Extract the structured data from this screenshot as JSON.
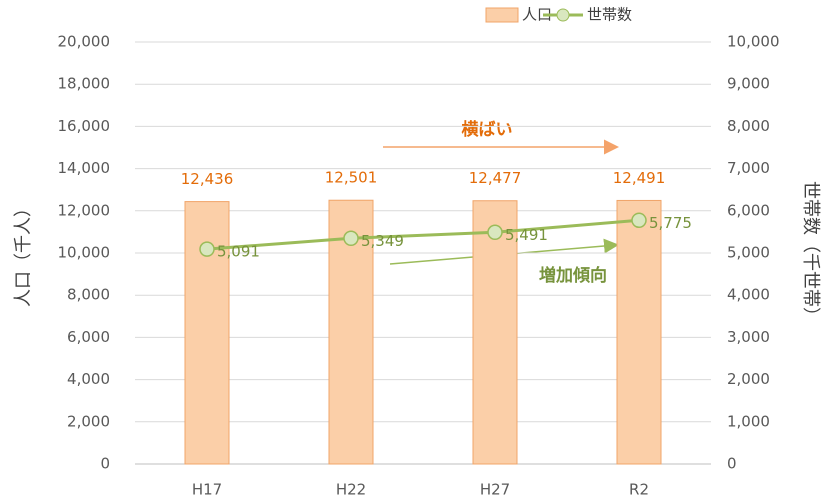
{
  "chart_data": {
    "type": "bar",
    "categories": [
      "H17",
      "H22",
      "H27",
      "R2"
    ],
    "series": [
      {
        "name": "人口",
        "type": "bar",
        "color": "#fbcfa8",
        "edge": "#f0a468",
        "label_color": "#e36c09",
        "values": [
          12436,
          12501,
          12477,
          12491
        ],
        "value_labels": [
          "12,436",
          "12,501",
          "12,477",
          "12,491"
        ]
      },
      {
        "name": "世帯数",
        "type": "line",
        "axis": "y2",
        "color": "#9bbb59",
        "marker_fill": "#d9e7bf",
        "label_color": "#77933c",
        "values": [
          5091,
          5349,
          5491,
          5775
        ],
        "value_labels": [
          "5,091",
          "5,349",
          "5,491",
          "5,775"
        ]
      }
    ],
    "ylabel": "人口（千人）",
    "y2label": "世帯数（千世帯）",
    "ylim": [
      0,
      20000
    ],
    "yticks": [
      0,
      {
        "value": 2000,
        "label": "2,000"
      },
      {
        "value": 4000,
        "label": "4,000"
      },
      {
        "value": 6000,
        "label": "6,000"
      },
      {
        "value": 8000,
        "label": "8,000"
      },
      {
        "value": 10000,
        "label": "10,000"
      },
      {
        "value": 12000,
        "label": "12,000"
      },
      {
        "value": 14000,
        "label": "14,000"
      },
      {
        "value": 16000,
        "label": "16,000"
      },
      {
        "value": 18000,
        "label": "18,000"
      },
      {
        "value": 20000,
        "label": "20,000"
      }
    ],
    "y2lim": [
      0,
      10000
    ],
    "y2ticks": [
      0,
      {
        "value": 1000,
        "label": "1,000"
      },
      {
        "value": 2000,
        "label": "2,000"
      },
      {
        "value": 3000,
        "label": "3,000"
      },
      {
        "value": 4000,
        "label": "4,000"
      },
      {
        "value": 5000,
        "label": "5,000"
      },
      {
        "value": 6000,
        "label": "6,000"
      },
      {
        "value": 7000,
        "label": "7,000"
      },
      {
        "value": 8000,
        "label": "8,000"
      },
      {
        "value": 9000,
        "label": "9,000"
      },
      {
        "value": 10000,
        "label": "10,000"
      }
    ],
    "grid": true,
    "legend": "top-right",
    "annotations": [
      "横ばい",
      "増加傾向"
    ]
  }
}
